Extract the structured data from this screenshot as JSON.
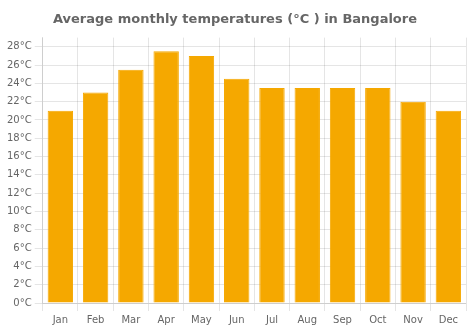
{
  "chart_data": {
    "type": "bar",
    "title": "Average monthly temperatures (°C ) in Bangalore",
    "categories": [
      "Jan",
      "Feb",
      "Mar",
      "Apr",
      "May",
      "Jun",
      "Jul",
      "Aug",
      "Sep",
      "Oct",
      "Nov",
      "Dec"
    ],
    "values": [
      21.0,
      23.0,
      25.5,
      27.5,
      27.0,
      24.5,
      23.5,
      23.5,
      23.5,
      23.5,
      22.0,
      21.0
    ],
    "color": "#F5A800",
    "ylim": [
      0,
      29
    ],
    "yticks": [
      {
        "value": 0,
        "label": "0°C"
      },
      {
        "value": 2,
        "label": "2°C"
      },
      {
        "value": 4,
        "label": "4°C"
      },
      {
        "value": 6,
        "label": "6°C"
      },
      {
        "value": 8,
        "label": "8°C"
      },
      {
        "value": 10,
        "label": "10°C"
      },
      {
        "value": 12,
        "label": "12°C"
      },
      {
        "value": 14,
        "label": "14°C"
      },
      {
        "value": 16,
        "label": "16°C"
      },
      {
        "value": 18,
        "label": "18°C"
      },
      {
        "value": 20,
        "label": "20°C"
      },
      {
        "value": 22,
        "label": "22°C"
      },
      {
        "value": 24,
        "label": "24°C"
      },
      {
        "value": 26,
        "label": "26°C"
      },
      {
        "value": 28,
        "label": "28°C"
      }
    ],
    "grid": true
  }
}
